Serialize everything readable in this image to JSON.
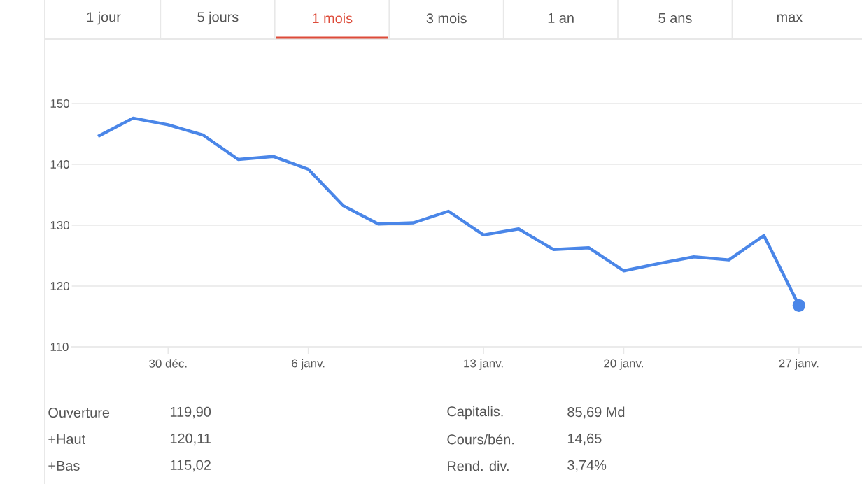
{
  "chart_data": {
    "type": "line",
    "categories": [
      null,
      null,
      "30 déc.",
      null,
      null,
      null,
      "6 janv.",
      null,
      null,
      null,
      null,
      "13 janv.",
      null,
      null,
      null,
      "20 janv.",
      null,
      null,
      null,
      null,
      "27 janv."
    ],
    "series": [
      {
        "color": "#4a86e8",
        "values": [
          144.6,
          147.6,
          146.5,
          144.8,
          140.8,
          141.3,
          139.2,
          133.2,
          130.2,
          130.4,
          132.3,
          128.4,
          129.4,
          126.0,
          126.3,
          122.5,
          123.7,
          124.8,
          124.3,
          128.3,
          116.8
        ]
      }
    ],
    "ylim": [
      110,
      150
    ],
    "yticks": [
      110,
      120,
      130,
      140,
      150
    ],
    "grid": "y",
    "annotations": [
      "1 jour",
      "5 jours",
      "1 mois",
      "3 mois",
      "1 an",
      "5 ans",
      "max",
      "Ouverture",
      "119,90",
      "+Haut",
      "120,11",
      "+Bas",
      "115,02",
      "Capitalis.",
      "85,69 Md",
      "Cours/bén.",
      "14,65",
      "Rend. div.",
      "3,74%"
    ]
  }
}
